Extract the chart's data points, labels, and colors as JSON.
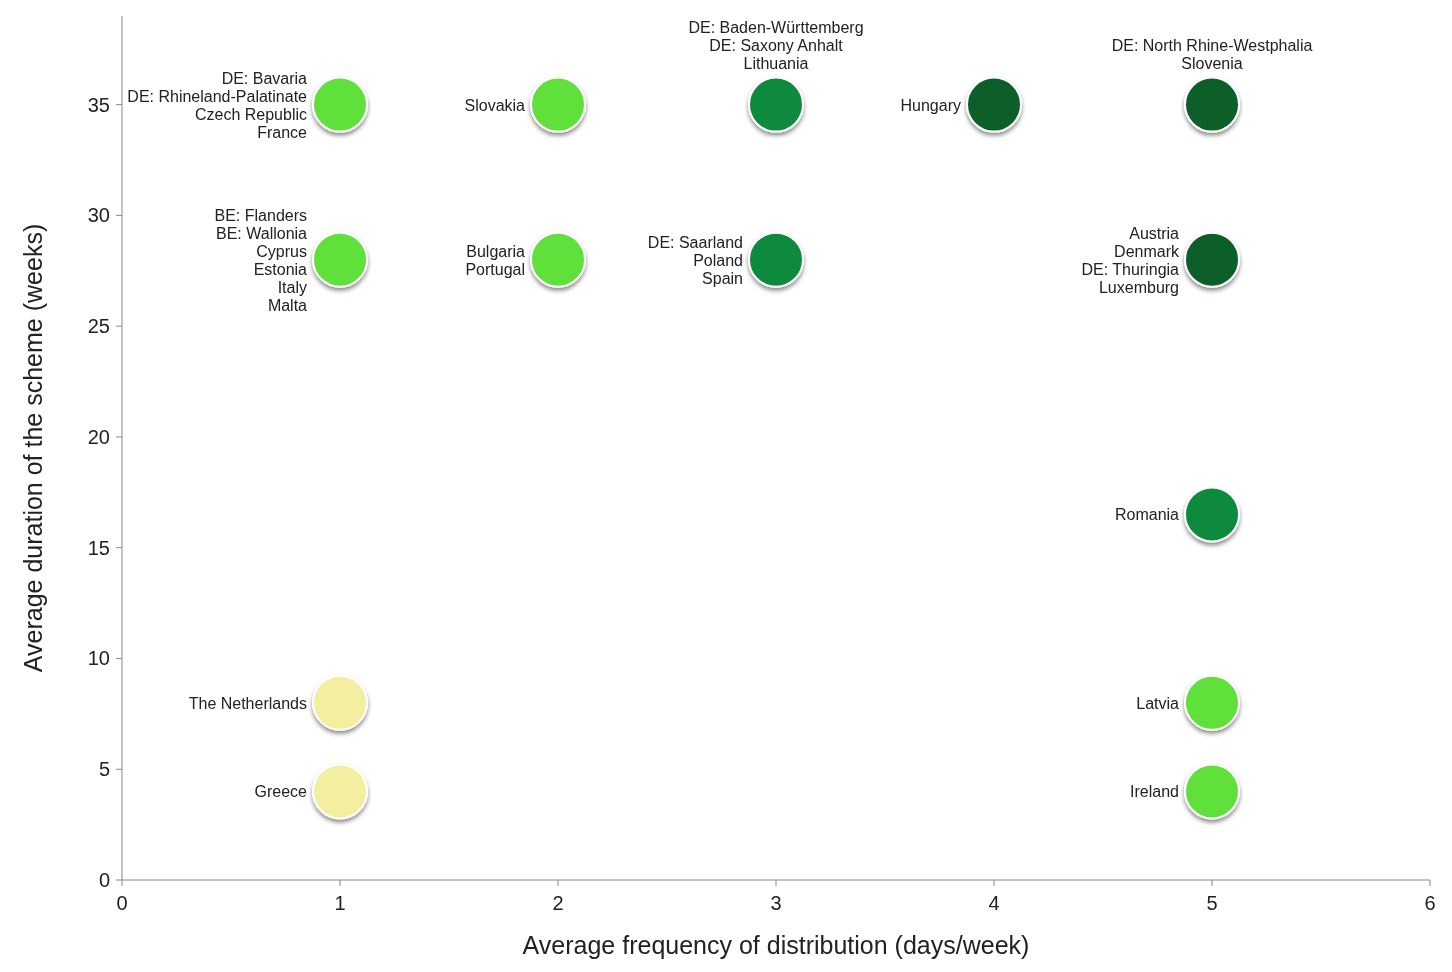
{
  "chart_data": {
    "type": "scatter",
    "xlabel": "Average frequency of distribution  (days/week)",
    "ylabel": "Average duration of the scheme (weeks)",
    "x": [
      1,
      2,
      3,
      4,
      5,
      1,
      2,
      3,
      5,
      5,
      1,
      5,
      1,
      5
    ],
    "values": [
      35,
      35,
      35,
      35,
      35,
      28,
      28,
      28,
      28,
      16.5,
      8,
      8,
      4,
      4
    ],
    "colors": [
      "#5ee03a",
      "#5ee03a",
      "#0a8a3c",
      "#0b5e2a",
      "#0b5e2a",
      "#5ee03a",
      "#5ee03a",
      "#0a8a3c",
      "#0b5e2a",
      "#0a8a3c",
      "#f4efa0",
      "#5ee03a",
      "#f4efa0",
      "#5ee03a"
    ],
    "xlim": [
      0,
      6
    ],
    "xticks": [
      0,
      1,
      2,
      3,
      4,
      5,
      6
    ],
    "ylim": [
      0,
      39
    ],
    "yticks": [
      0,
      5,
      10,
      15,
      20,
      25,
      30,
      35
    ],
    "marker": "circle",
    "grid": false,
    "annotations": [
      {
        "text": "DE: Bavaria\nDE: Rhineland-Palatinate\nCzech Republic\nFrance",
        "x": 1,
        "y": 35
      },
      {
        "text": "Slovakia",
        "x": 2,
        "y": 35
      },
      {
        "text": "DE: Baden-Württemberg\nDE: Saxony Anhalt\nLithuania",
        "x": 3,
        "y": 35
      },
      {
        "text": "Hungary",
        "x": 4,
        "y": 35
      },
      {
        "text": "DE: North Rhine-Westphalia\nSlovenia",
        "x": 5,
        "y": 35
      },
      {
        "text": "BE: Flanders\nBE: Wallonia\nCyprus\nEstonia\nItaly\nMalta",
        "x": 1,
        "y": 28
      },
      {
        "text": "Bulgaria\nPortugal",
        "x": 2,
        "y": 28
      },
      {
        "text": "DE: Saarland\nPoland\nSpain",
        "x": 3,
        "y": 28
      },
      {
        "text": "Austria\nDenmark\nDE: Thuringia\nLuxemburg",
        "x": 5,
        "y": 28
      },
      {
        "text": "Romania",
        "x": 5,
        "y": 16.5
      },
      {
        "text": "The Netherlands",
        "x": 1,
        "y": 8
      },
      {
        "text": "Latvia",
        "x": 5,
        "y": 8
      },
      {
        "text": "Greece",
        "x": 1,
        "y": 4
      },
      {
        "text": "Ireland",
        "x": 5,
        "y": 4
      }
    ]
  }
}
